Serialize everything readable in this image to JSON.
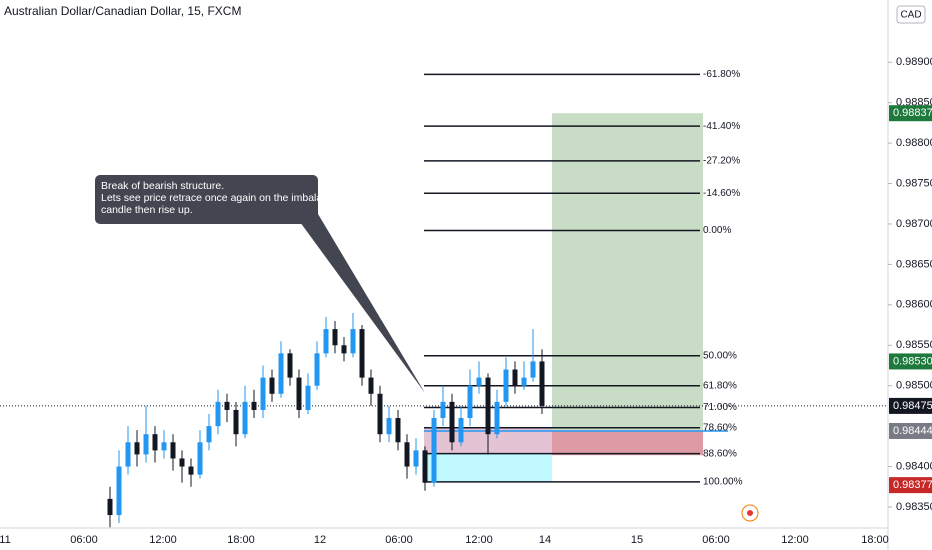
{
  "header": {
    "symbol": "Australian Dollar/Canadian Dollar, 15, FXCM",
    "currency": "CAD"
  },
  "callout": {
    "lines": [
      "Break of bearish structure.",
      "Lets see price retrace once again on the imbalance",
      "candle then rise up."
    ]
  },
  "ylim": [
    0.98324,
    0.98977
  ],
  "yticks": [
    {
      "value": 0.989,
      "label": "0.98900"
    },
    {
      "value": 0.9885,
      "label": "0.98850"
    },
    {
      "value": 0.988,
      "label": "0.98800"
    },
    {
      "value": 0.9875,
      "label": "0.98750"
    },
    {
      "value": 0.987,
      "label": "0.98700"
    },
    {
      "value": 0.9865,
      "label": "0.98650"
    },
    {
      "value": 0.986,
      "label": "0.98600"
    },
    {
      "value": 0.9855,
      "label": "0.98550"
    },
    {
      "value": 0.985,
      "label": "0.98500"
    },
    {
      "value": 0.984,
      "label": "0.98400"
    },
    {
      "value": 0.9835,
      "label": "0.98350"
    }
  ],
  "time_labels": [
    "11",
    "06:00",
    "12:00",
    "18:00",
    "12",
    "06:00",
    "12:00",
    "14",
    "15",
    "06:00",
    "12:00",
    "18:00"
  ],
  "price_tags": [
    {
      "value": 0.98837,
      "label": "0.98837",
      "color": "#1e7a3c"
    },
    {
      "value": 0.9853,
      "label": "0.98530",
      "color": "#1e7a3c"
    },
    {
      "value": 0.98475,
      "label": "0.98475",
      "color": "#131722"
    },
    {
      "value": 0.98444,
      "label": "0.98444",
      "color": "#787b86"
    },
    {
      "value": 0.98377,
      "label": "0.98377",
      "color": "#c62828"
    }
  ],
  "fib": [
    {
      "price": 0.98885,
      "label": "-61.80%"
    },
    {
      "price": 0.98821,
      "label": "-41.40%"
    },
    {
      "price": 0.98778,
      "label": "-27.20%"
    },
    {
      "price": 0.98738,
      "label": "-14.60%"
    },
    {
      "price": 0.98692,
      "label": "0.00%"
    },
    {
      "price": 0.98537,
      "label": "50.00%"
    },
    {
      "price": 0.985,
      "label": "61.80%"
    },
    {
      "price": 0.98473,
      "label": "71.00%"
    },
    {
      "price": 0.98448,
      "label": "78.60%"
    },
    {
      "price": 0.98416,
      "label": "88.60%"
    },
    {
      "price": 0.98381,
      "label": "100.00%"
    }
  ],
  "position": {
    "entry": 0.98444,
    "target": 0.98837,
    "stop": 0.98414
  },
  "zones": [
    {
      "top": 0.98448,
      "bottom": 0.98416,
      "color": "#e1bcd0"
    },
    {
      "top": 0.98416,
      "bottom": 0.98381,
      "color": "#b8f8ff"
    }
  ],
  "up_color": "#2196f3",
  "down_color": "#131722",
  "candles": [
    [
      0.9836,
      0.98375,
      0.98325,
      0.9834
    ],
    [
      0.9834,
      0.9842,
      0.9833,
      0.984
    ],
    [
      0.984,
      0.9845,
      0.9839,
      0.9843
    ],
    [
      0.9843,
      0.98445,
      0.984,
      0.98415
    ],
    [
      0.98415,
      0.98475,
      0.98405,
      0.9844
    ],
    [
      0.9844,
      0.9845,
      0.98405,
      0.9842
    ],
    [
      0.9842,
      0.98445,
      0.9841,
      0.9843
    ],
    [
      0.9843,
      0.9844,
      0.98395,
      0.9841
    ],
    [
      0.9841,
      0.9842,
      0.9838,
      0.984
    ],
    [
      0.984,
      0.9841,
      0.98375,
      0.9839
    ],
    [
      0.9839,
      0.98445,
      0.98385,
      0.9843
    ],
    [
      0.9843,
      0.98465,
      0.9842,
      0.9845
    ],
    [
      0.9845,
      0.98495,
      0.9844,
      0.9848
    ],
    [
      0.9848,
      0.9849,
      0.98455,
      0.9847
    ],
    [
      0.9847,
      0.9848,
      0.98425,
      0.9844
    ],
    [
      0.9844,
      0.985,
      0.98435,
      0.9848
    ],
    [
      0.9848,
      0.98495,
      0.9846,
      0.9847
    ],
    [
      0.9847,
      0.98525,
      0.9846,
      0.9851
    ],
    [
      0.9851,
      0.9852,
      0.9848,
      0.9849
    ],
    [
      0.9849,
      0.98555,
      0.98485,
      0.9854
    ],
    [
      0.9854,
      0.98545,
      0.985,
      0.9851
    ],
    [
      0.9851,
      0.9852,
      0.9846,
      0.9847
    ],
    [
      0.9847,
      0.98515,
      0.98465,
      0.985
    ],
    [
      0.985,
      0.98555,
      0.98495,
      0.9854
    ],
    [
      0.9854,
      0.98585,
      0.98535,
      0.9857
    ],
    [
      0.9857,
      0.9858,
      0.9854,
      0.9855
    ],
    [
      0.9855,
      0.9856,
      0.9853,
      0.9854
    ],
    [
      0.9854,
      0.9859,
      0.98535,
      0.9857
    ],
    [
      0.9857,
      0.98575,
      0.985,
      0.9851
    ],
    [
      0.9851,
      0.9852,
      0.98475,
      0.9849
    ],
    [
      0.9849,
      0.985,
      0.9843,
      0.9844
    ],
    [
      0.9844,
      0.98475,
      0.9843,
      0.9846
    ],
    [
      0.9846,
      0.9847,
      0.9842,
      0.9843
    ],
    [
      0.9843,
      0.9844,
      0.98385,
      0.984
    ],
    [
      0.984,
      0.98435,
      0.9839,
      0.9842
    ],
    [
      0.9842,
      0.98425,
      0.9837,
      0.9838
    ],
    [
      0.9838,
      0.9847,
      0.98375,
      0.9846
    ],
    [
      0.9846,
      0.985,
      0.9845,
      0.9848
    ],
    [
      0.9848,
      0.9849,
      0.9842,
      0.9843
    ],
    [
      0.9843,
      0.98475,
      0.98425,
      0.9846
    ],
    [
      0.9846,
      0.9852,
      0.9845,
      0.985
    ],
    [
      0.985,
      0.9853,
      0.9849,
      0.9851
    ],
    [
      0.9851,
      0.98515,
      0.98415,
      0.9844
    ],
    [
      0.9844,
      0.98495,
      0.98435,
      0.9848
    ],
    [
      0.9848,
      0.98535,
      0.98475,
      0.9852
    ],
    [
      0.9852,
      0.9853,
      0.9849,
      0.985
    ],
    [
      0.985,
      0.9853,
      0.98495,
      0.9851
    ],
    [
      0.9851,
      0.9857,
      0.98505,
      0.9853
    ],
    [
      0.9853,
      0.98545,
      0.98465,
      0.98475
    ]
  ]
}
